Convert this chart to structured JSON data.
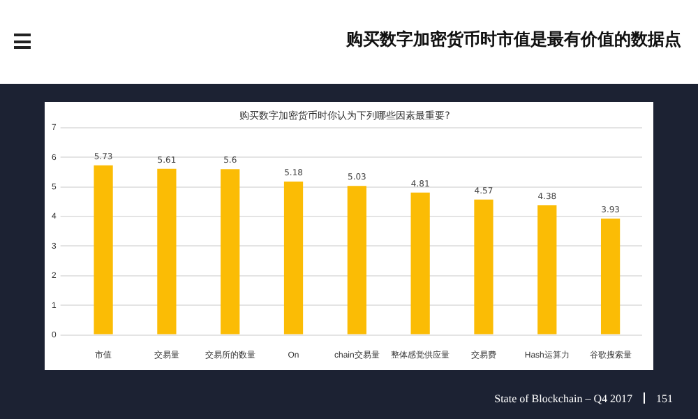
{
  "chart_data": {
    "type": "bar",
    "title": "购买数字加密货币时你认为下列哪些因素最重要?",
    "categories": [
      "市值",
      "交易量",
      "交易所的数量",
      "On",
      "chain交易量",
      "整体感觉供应量",
      "交易费",
      "Hash运算力",
      "谷歌搜索量"
    ],
    "values": [
      5.73,
      5.61,
      5.6,
      5.18,
      5.03,
      4.81,
      4.57,
      4.38,
      3.93
    ],
    "color": "#fbbc05",
    "ylim": [
      0,
      7
    ],
    "yticks": [
      0,
      1,
      2,
      3,
      4,
      5,
      6,
      7
    ],
    "grid": "y",
    "data_labels": true,
    "annotations": [
      "购买数字加密货币时市值是最有价值的数据点",
      "State of Blockchain – Q4 2017",
      "151"
    ]
  }
}
